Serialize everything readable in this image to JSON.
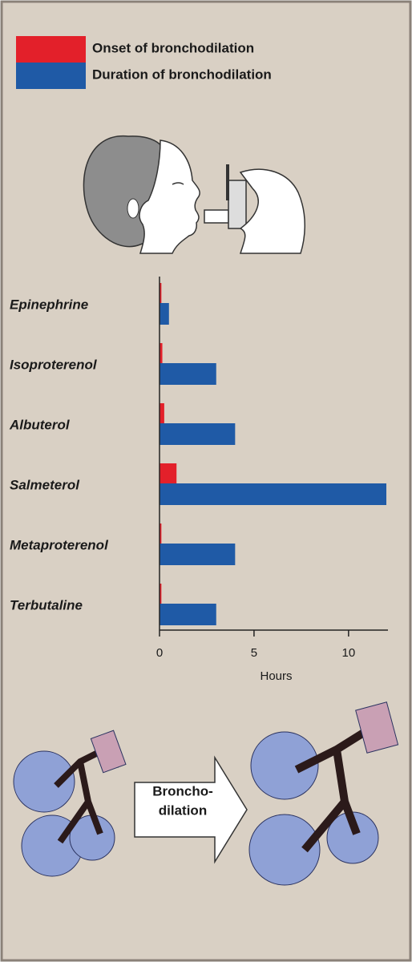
{
  "chart_data": {
    "type": "bar",
    "categories": [
      "Epinephrine",
      "Isoproterenol",
      "Albuterol",
      "Salmeterol",
      "Metaproterenol",
      "Terbutaline"
    ],
    "series": [
      {
        "name": "Onset of bronchodilation",
        "color": "#e3202a",
        "values": [
          0.1,
          0.15,
          0.25,
          0.9,
          0.1,
          0.1
        ]
      },
      {
        "name": "Duration of bronchodilation",
        "color": "#1f5aa6",
        "values": [
          0.5,
          3,
          4,
          12,
          4,
          3
        ]
      }
    ],
    "xlabel": "Hours",
    "xlim": [
      0,
      12
    ],
    "xticks": [
      0,
      5,
      10
    ]
  },
  "illustration": {
    "arrow_label": [
      "Broncho-",
      "dilation"
    ]
  }
}
